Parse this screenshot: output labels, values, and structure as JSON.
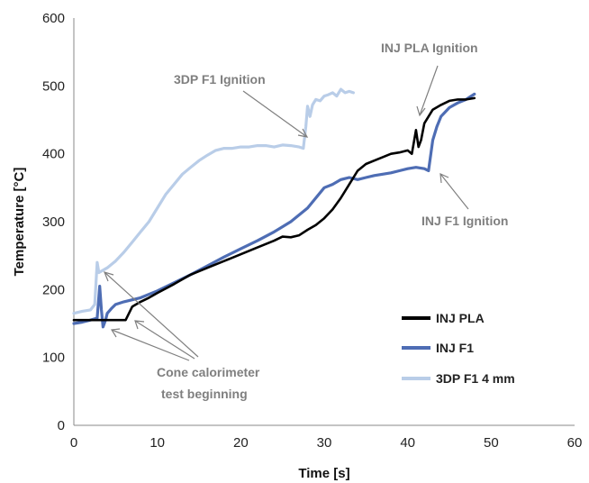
{
  "chart_data": {
    "type": "line",
    "xlabel": "Time [s]",
    "ylabel": "Temperature [°C]",
    "xlim": [
      0,
      60
    ],
    "ylim": [
      0,
      600
    ],
    "xticks": [
      0,
      10,
      20,
      30,
      40,
      50,
      60
    ],
    "yticks": [
      0,
      100,
      200,
      300,
      400,
      500,
      600
    ],
    "grid": false,
    "legend_position": "bottom-right",
    "series": [
      {
        "name": "INJ PLA",
        "color": "#000000",
        "x": [
          0,
          2,
          4,
          5.5,
          6.2,
          7,
          8,
          9,
          10,
          12,
          14,
          16,
          18,
          20,
          22,
          24,
          25,
          26,
          27,
          28,
          29,
          30,
          31,
          32,
          33,
          34,
          35,
          36,
          37,
          38,
          39,
          40,
          40.5,
          41,
          41.3,
          41.6,
          42,
          43,
          44,
          45,
          46,
          47,
          48
        ],
        "y": [
          155,
          155,
          155,
          155,
          155,
          175,
          182,
          188,
          195,
          208,
          222,
          232,
          242,
          252,
          262,
          272,
          278,
          277,
          280,
          288,
          295,
          305,
          318,
          335,
          355,
          375,
          385,
          390,
          395,
          400,
          402,
          405,
          400,
          435,
          410,
          420,
          445,
          465,
          472,
          478,
          480,
          480,
          482
        ]
      },
      {
        "name": "INJ F1",
        "color": "#4e6db4",
        "x": [
          0,
          1,
          2,
          2.8,
          3.1,
          3.3,
          3.5,
          3.8,
          4,
          4.5,
          5,
          6,
          8,
          10,
          12,
          14,
          16,
          18,
          20,
          22,
          24,
          26,
          28,
          30,
          31,
          32,
          33,
          34,
          35,
          36,
          37,
          38,
          39,
          40,
          41,
          42,
          42.5,
          43,
          43.5,
          44,
          45,
          46,
          47,
          48
        ],
        "y": [
          150,
          152,
          155,
          158,
          205,
          170,
          145,
          155,
          165,
          172,
          178,
          182,
          188,
          198,
          210,
          222,
          235,
          248,
          260,
          272,
          285,
          300,
          320,
          350,
          355,
          362,
          365,
          362,
          365,
          368,
          370,
          372,
          375,
          378,
          380,
          378,
          375,
          420,
          440,
          455,
          468,
          475,
          480,
          488
        ]
      },
      {
        "name": "3DP F1 4 mm",
        "color": "#b9cde8",
        "x": [
          0,
          1,
          2,
          2.5,
          2.8,
          3,
          4,
          5,
          6,
          7,
          8,
          9,
          10,
          11,
          12,
          13,
          14,
          15,
          16,
          17,
          18,
          19,
          20,
          21,
          22,
          23,
          24,
          25,
          26,
          27,
          27.5,
          27.8,
          28,
          28.3,
          28.6,
          29,
          29.5,
          30,
          30.5,
          31,
          31.5,
          32,
          32.5,
          33,
          33.5
        ],
        "y": [
          165,
          168,
          170,
          178,
          240,
          225,
          232,
          242,
          255,
          270,
          285,
          300,
          320,
          340,
          355,
          370,
          380,
          390,
          398,
          405,
          408,
          408,
          410,
          410,
          412,
          412,
          410,
          413,
          412,
          410,
          408,
          440,
          470,
          455,
          472,
          480,
          478,
          485,
          487,
          490,
          485,
          495,
          490,
          492,
          490
        ]
      }
    ],
    "annotations": [
      {
        "text": "3DP F1 Ignition",
        "x": 27.8,
        "y": 410
      },
      {
        "text": "INJ PLA Ignition",
        "x": 41.2,
        "y": 440
      },
      {
        "text": "INJ F1 Ignition",
        "x": 43,
        "y": 380
      },
      {
        "text": "Cone calorimeter",
        "x": 3,
        "y": 150
      },
      {
        "text": "test beginning",
        "x": 3,
        "y": 150
      }
    ]
  }
}
